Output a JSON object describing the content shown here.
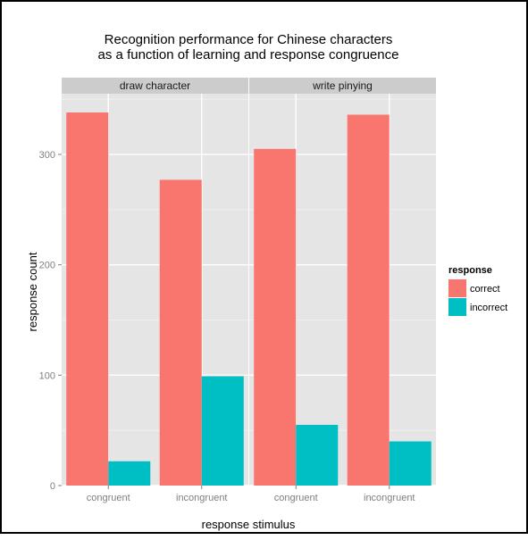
{
  "chart_data": {
    "type": "bar",
    "title_lines": [
      "Recognition performance for Chinese characters",
      "as a function of learning and response congruence"
    ],
    "xlabel": "response stimulus",
    "ylabel": "response count",
    "ylim": [
      0,
      355
    ],
    "yticks": [
      0,
      100,
      200,
      300
    ],
    "grid": true,
    "legend": {
      "title": "response",
      "position": "right",
      "entries": [
        {
          "name": "correct",
          "color": "#F8766D"
        },
        {
          "name": "incorrect",
          "color": "#00BFC4"
        }
      ]
    },
    "colors": {
      "correct": "#F8766D",
      "incorrect": "#00BFC4",
      "panel_bg": "#E5E5E5",
      "strip_bg": "#CCCCCC"
    },
    "categories": [
      "congruent",
      "incongruent"
    ],
    "facets": [
      {
        "label": "draw character",
        "series": [
          {
            "name": "correct",
            "values": [
              338,
              277
            ]
          },
          {
            "name": "incorrect",
            "values": [
              22,
              99
            ]
          }
        ]
      },
      {
        "label": "write pinying",
        "series": [
          {
            "name": "correct",
            "values": [
              305,
              336
            ]
          },
          {
            "name": "incorrect",
            "values": [
              55,
              40
            ]
          }
        ]
      }
    ]
  }
}
